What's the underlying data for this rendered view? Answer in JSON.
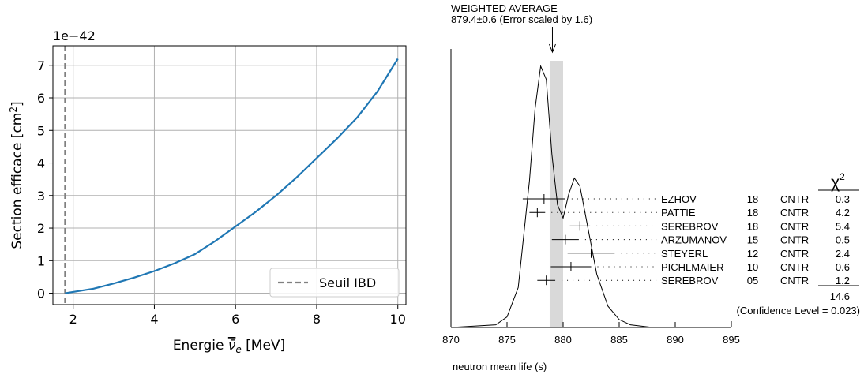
{
  "chart_data": [
    {
      "type": "line",
      "xlabel_prefix": "Energie ",
      "xlabel_symbol": "ν̄",
      "xlabel_sub": "e",
      "xlabel_unit": " [MeV]",
      "ylabel_text": "Section efficace [cm",
      "ylabel_sup": "2",
      "ylabel_end": "]",
      "offset_text": "1e−42",
      "xlim": [
        1.5,
        10.2
      ],
      "ylim": [
        -0.35,
        7.6
      ],
      "xticks": [
        2,
        4,
        6,
        8,
        10
      ],
      "yticks": [
        0,
        1,
        2,
        3,
        4,
        5,
        6,
        7
      ],
      "grid": true,
      "legend_position": "lower-right",
      "series": [
        {
          "name": "",
          "color": "#1f77b4",
          "x": [
            1.8,
            2.5,
            3.0,
            3.5,
            4.0,
            4.5,
            5.0,
            5.5,
            6.0,
            6.5,
            7.0,
            7.5,
            8.0,
            8.5,
            9.0,
            9.5,
            10.0
          ],
          "y": [
            0.0,
            0.14,
            0.3,
            0.48,
            0.68,
            0.92,
            1.2,
            1.6,
            2.05,
            2.5,
            3.0,
            3.55,
            4.15,
            4.75,
            5.4,
            6.2,
            7.2
          ]
        }
      ],
      "threshold": {
        "name": "Seuil IBD",
        "x": 1.8,
        "color": "#808080",
        "style": "dashed"
      }
    },
    {
      "type": "line",
      "title_line1": "WEIGHTED AVERAGE",
      "title_line2": "879.4±0.6 (Error scaled by 1.6)",
      "xlabel": "neutron mean life (s)",
      "xlim": [
        870,
        895
      ],
      "xticks": [
        870,
        875,
        880,
        885,
        890,
        895
      ],
      "average": {
        "value": 879.4,
        "band": [
          878.8,
          880.0
        ],
        "band_color": "#d9d9d9"
      },
      "ideogram": {
        "x": [
          870,
          874,
          875,
          876,
          877,
          877.5,
          878,
          878.5,
          879,
          879.5,
          880,
          880.5,
          881,
          881.5,
          882,
          883,
          884,
          885,
          886,
          888,
          890
        ],
        "y": [
          0.0,
          0.01,
          0.04,
          0.15,
          0.55,
          0.82,
          0.98,
          0.93,
          0.65,
          0.46,
          0.41,
          0.5,
          0.56,
          0.53,
          0.42,
          0.2,
          0.08,
          0.03,
          0.01,
          0.0,
          0.0
        ]
      },
      "chi2_header": "χ",
      "chi2_header_sup": "2",
      "measurements": [
        {
          "label": "EZHOV",
          "value": 878.3,
          "error": 1.9,
          "year": "18",
          "tech": "CNTR",
          "chi2": "0.3"
        },
        {
          "label": "PATTIE",
          "value": 877.7,
          "error": 0.7,
          "year": "18",
          "tech": "CNTR",
          "chi2": "4.2"
        },
        {
          "label": "SEREBROV",
          "value": 881.5,
          "error": 0.9,
          "year": "18",
          "tech": "CNTR",
          "chi2": "5.4"
        },
        {
          "label": "ARZUMANOV",
          "value": 880.2,
          "error": 1.2,
          "year": "15",
          "tech": "CNTR",
          "chi2": "0.5"
        },
        {
          "label": "STEYERL",
          "value": 882.5,
          "error": 2.1,
          "year": "12",
          "tech": "CNTR",
          "chi2": "2.4"
        },
        {
          "label": "PICHLMAIER",
          "value": 880.7,
          "error": 1.8,
          "year": "10",
          "tech": "CNTR",
          "chi2": "0.6"
        },
        {
          "label": "SEREBROV",
          "value": 878.5,
          "error": 0.8,
          "year": "05",
          "tech": "CNTR",
          "chi2": "1.2"
        }
      ],
      "chi2_total": "14.6",
      "confidence_level": "(Confidence Level = 0.023)"
    }
  ]
}
